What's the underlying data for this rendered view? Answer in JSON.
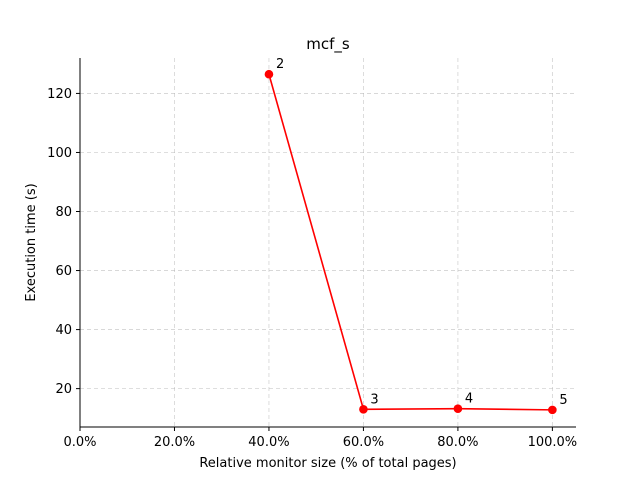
{
  "chart_data": {
    "type": "line",
    "title": "mcf_s",
    "xlabel": "Relative monitor size (% of total pages)",
    "ylabel": "Execution time (s)",
    "xlim": [
      0,
      105
    ],
    "ylim": [
      7,
      132
    ],
    "x_ticks": [
      0,
      20,
      40,
      60,
      80,
      100
    ],
    "x_tick_labels": [
      "0.0%",
      "20.0%",
      "40.0%",
      "60.0%",
      "80.0%",
      "100.0%"
    ],
    "y_ticks": [
      20,
      40,
      60,
      80,
      100,
      120
    ],
    "y_tick_labels": [
      "20",
      "40",
      "60",
      "80",
      "100",
      "120"
    ],
    "grid": true,
    "series": [
      {
        "color": "#ff0000",
        "x": [
          40,
          60,
          80,
          100
        ],
        "y": [
          126.5,
          13.0,
          13.2,
          12.8
        ],
        "point_labels": [
          "2",
          "3",
          "4",
          "5"
        ]
      }
    ]
  }
}
